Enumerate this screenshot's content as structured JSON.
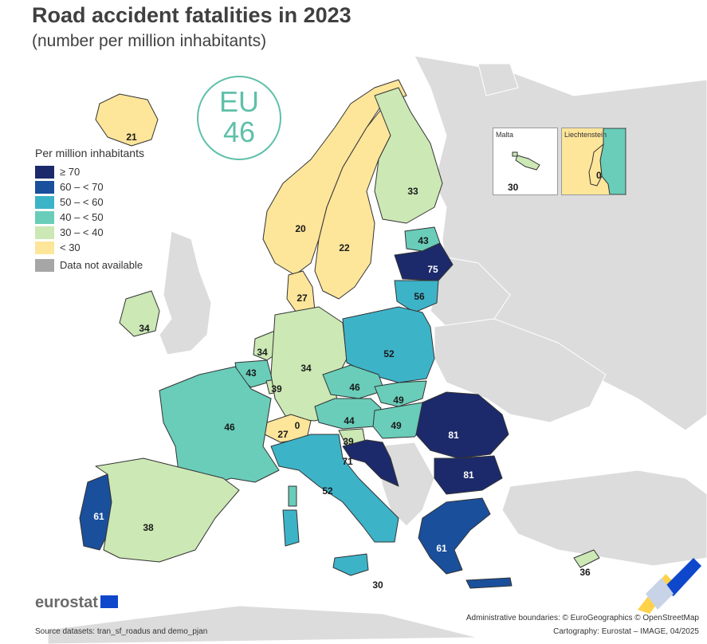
{
  "title": "Road accident fatalities in 2023",
  "subtitle": "(number per million inhabitants)",
  "eu_badge": {
    "line1": "EU",
    "line2": "46"
  },
  "legend": {
    "title": "Per million inhabitants",
    "items": [
      {
        "label": "≥ 70",
        "color": "#1c2a6b"
      },
      {
        "label": "60 – < 70",
        "color": "#1a4f9c"
      },
      {
        "label": "50 – < 60",
        "color": "#3db3c8"
      },
      {
        "label": "40 – < 50",
        "color": "#69cdb9"
      },
      {
        "label": "30 – < 40",
        "color": "#cce8b5"
      },
      {
        "label": "< 30",
        "color": "#fde59a"
      },
      {
        "label": "Data not available",
        "color": "#a6a6a6"
      }
    ]
  },
  "countries": {
    "iceland": "21",
    "norway": "20",
    "sweden": "22",
    "finland": "33",
    "estonia": "43",
    "latvia": "75",
    "lithuania": "56",
    "denmark": "27",
    "ireland": "34",
    "netherlands": "34",
    "belgium": "43",
    "luxembourg": "39",
    "germany": "34",
    "poland": "52",
    "czechia": "46",
    "slovakia": "49",
    "austria": "44",
    "hungary": "49",
    "slovenia": "39",
    "croatia": "71",
    "switzerland": "27",
    "liechtenstein_main": "0",
    "france": "46",
    "italy": "52",
    "romania": "81",
    "bulgaria": "81",
    "greece": "61",
    "portugal": "61",
    "spain": "38",
    "malta": "30",
    "cyprus": "36",
    "malta_bottom": "30"
  },
  "insets": {
    "malta_label": "Malta",
    "malta_value": "30",
    "liechtenstein_label": "Liechtenstein",
    "liechtenstein_value": "0"
  },
  "footer": {
    "brand": "eurostat",
    "source": "Source datasets: tran_sf_roadus and demo_pjan",
    "boundaries": "Administrative boundaries: © EuroGeographics © OpenStreetMap",
    "cartography": "Cartography: Eurostat – IMAGE, 04/2025"
  },
  "colors": {
    "non_eu": "#dcdcdc",
    "sea": "#ffffff",
    "border": "#333333"
  }
}
